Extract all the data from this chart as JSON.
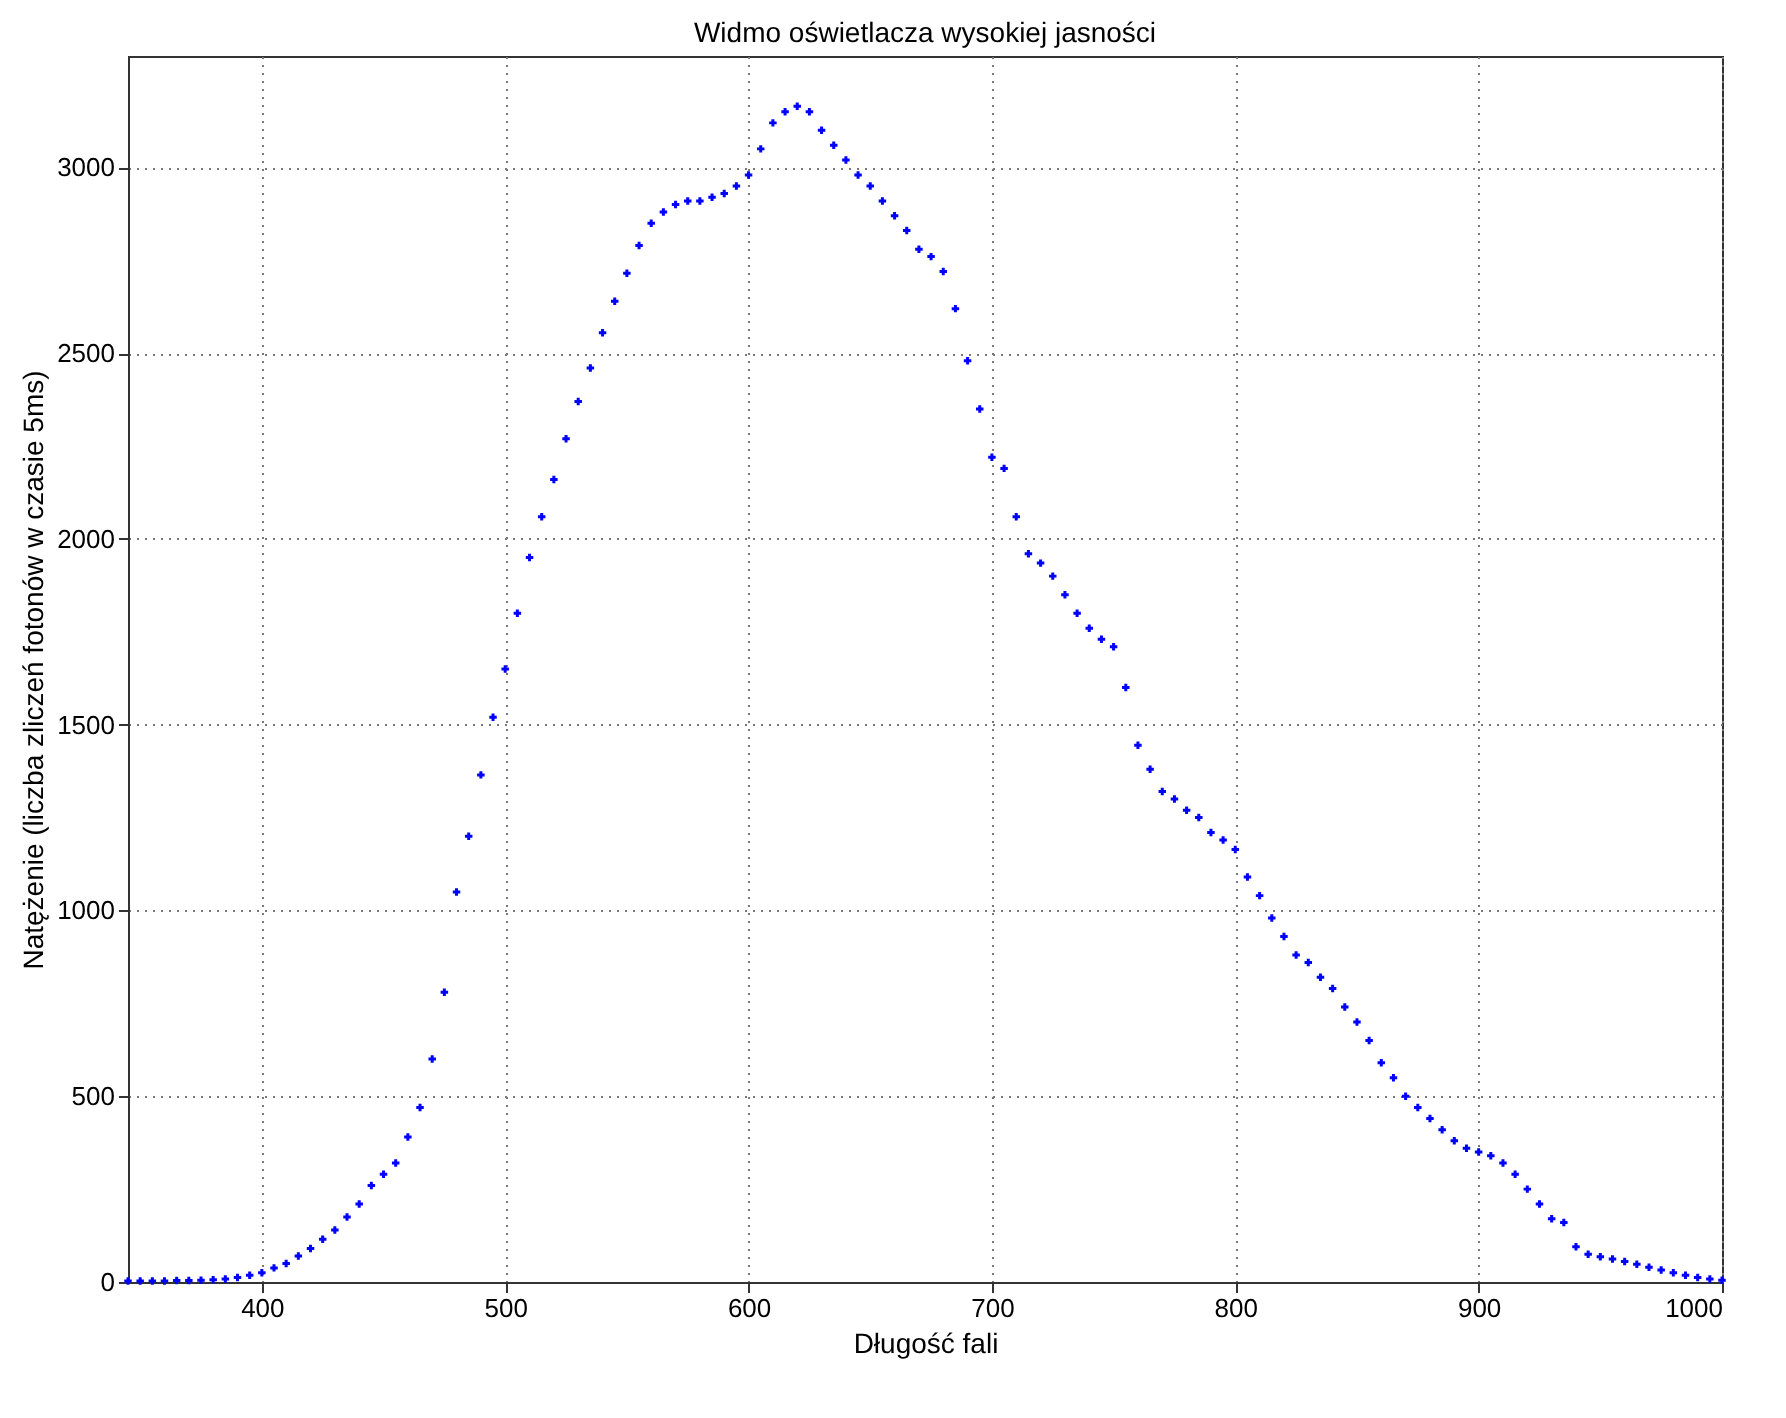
{
  "chart_data": {
    "type": "scatter",
    "title": "Widmo oświetlacza wysokiej jasności",
    "xlabel": "Długość fali",
    "ylabel": "Natężenie (liczba zliczeń fotonów w czasie 5ms)",
    "x": [
      345,
      350,
      355,
      360,
      365,
      370,
      375,
      380,
      385,
      390,
      395,
      400,
      405,
      410,
      415,
      420,
      425,
      430,
      435,
      440,
      445,
      450,
      455,
      460,
      465,
      470,
      475,
      480,
      485,
      490,
      495,
      500,
      505,
      510,
      515,
      520,
      525,
      530,
      535,
      540,
      545,
      550,
      555,
      560,
      565,
      570,
      575,
      580,
      585,
      590,
      595,
      600,
      605,
      610,
      615,
      620,
      625,
      630,
      635,
      640,
      645,
      650,
      655,
      660,
      665,
      670,
      675,
      680,
      685,
      690,
      695,
      700,
      705,
      710,
      715,
      720,
      725,
      730,
      735,
      740,
      745,
      750,
      755,
      760,
      765,
      770,
      775,
      780,
      785,
      790,
      795,
      800,
      805,
      810,
      815,
      820,
      825,
      830,
      835,
      840,
      845,
      850,
      855,
      860,
      865,
      870,
      875,
      880,
      885,
      890,
      895,
      900,
      905,
      910,
      915,
      920,
      925,
      930,
      935,
      940,
      945,
      950,
      955,
      960,
      965,
      970,
      975,
      980,
      985,
      990,
      995,
      1000
    ],
    "series": [
      {
        "color": "#0000ff",
        "values": [
          3,
          3,
          3,
          3,
          4,
          4,
          5,
          6,
          8,
          12,
          18,
          25,
          38,
          50,
          70,
          90,
          115,
          140,
          175,
          210,
          260,
          290,
          320,
          390,
          470,
          600,
          780,
          1050,
          1200,
          1365,
          1520,
          1650,
          1800,
          1950,
          2060,
          2160,
          2270,
          2370,
          2460,
          2555,
          2640,
          2715,
          2790,
          2850,
          2880,
          2900,
          2910,
          2910,
          2920,
          2930,
          2950,
          2980,
          3050,
          3120,
          3150,
          3165,
          3150,
          3100,
          3060,
          3020,
          2980,
          2950,
          2910,
          2870,
          2830,
          2780,
          2760,
          2720,
          2620,
          2480,
          2350,
          2220,
          2190,
          2060,
          1960,
          1935,
          1900,
          1850,
          1800,
          1760,
          1730,
          1710,
          1600,
          1445,
          1380,
          1320,
          1300,
          1270,
          1250,
          1210,
          1190,
          1164,
          1090,
          1040,
          980,
          930,
          880,
          860,
          820,
          790,
          740,
          700,
          650,
          590,
          550,
          500,
          470,
          440,
          410,
          380,
          360,
          350,
          340,
          320,
          290,
          250,
          210,
          170,
          160,
          95,
          75,
          68,
          62,
          55,
          48,
          40,
          32,
          25,
          18,
          12,
          8,
          5
        ]
      }
    ],
    "xlim": [
      345,
      1000
    ],
    "xticks": [
      400,
      500,
      600,
      700,
      800,
      900,
      1000
    ],
    "ylim": [
      0,
      3300
    ],
    "yticks": [
      0,
      500,
      1000,
      1500,
      2000,
      2500,
      3000
    ],
    "grid": true,
    "marker": "cross"
  }
}
